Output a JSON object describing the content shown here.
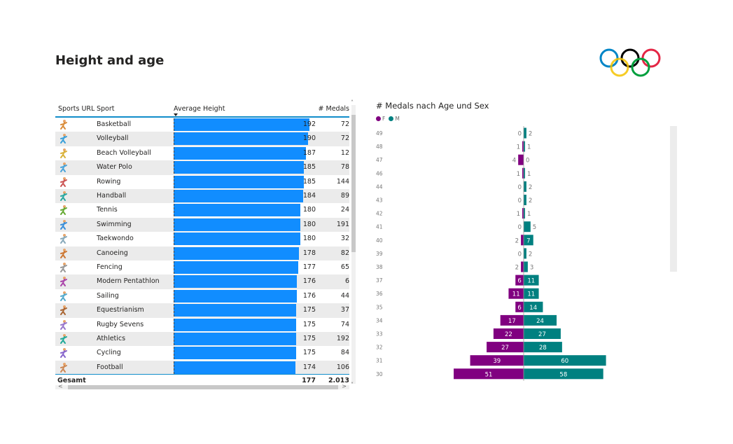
{
  "page": {
    "title": "Height and age",
    "logo": "olympic-rings-icon"
  },
  "table": {
    "headers": {
      "sports_url": "Sports URL",
      "sport": "Sport",
      "average_height": "Average Height",
      "medals": "# Medals"
    },
    "rows": [
      {
        "icon": "basketball-icon",
        "sport": "Basketball",
        "avg_height": 192,
        "medals": "72"
      },
      {
        "icon": "volleyball-icon",
        "sport": "Volleyball",
        "avg_height": 190,
        "medals": "72"
      },
      {
        "icon": "beach-volleyball-icon",
        "sport": "Beach Volleyball",
        "avg_height": 187,
        "medals": "12"
      },
      {
        "icon": "water-polo-icon",
        "sport": "Water Polo",
        "avg_height": 185,
        "medals": "78"
      },
      {
        "icon": "rowing-icon",
        "sport": "Rowing",
        "avg_height": 185,
        "medals": "144"
      },
      {
        "icon": "handball-icon",
        "sport": "Handball",
        "avg_height": 184,
        "medals": "89"
      },
      {
        "icon": "tennis-icon",
        "sport": "Tennis",
        "avg_height": 180,
        "medals": "24"
      },
      {
        "icon": "swimming-icon",
        "sport": "Swimming",
        "avg_height": 180,
        "medals": "191"
      },
      {
        "icon": "taekwondo-icon",
        "sport": "Taekwondo",
        "avg_height": 180,
        "medals": "32"
      },
      {
        "icon": "canoeing-icon",
        "sport": "Canoeing",
        "avg_height": 178,
        "medals": "82"
      },
      {
        "icon": "fencing-icon",
        "sport": "Fencing",
        "avg_height": 177,
        "medals": "65"
      },
      {
        "icon": "modern-pentathlon-icon",
        "sport": "Modern Pentathlon",
        "avg_height": 176,
        "medals": "6"
      },
      {
        "icon": "sailing-icon",
        "sport": "Sailing",
        "avg_height": 176,
        "medals": "44"
      },
      {
        "icon": "equestrianism-icon",
        "sport": "Equestrianism",
        "avg_height": 175,
        "medals": "37"
      },
      {
        "icon": "rugby-sevens-icon",
        "sport": "Rugby Sevens",
        "avg_height": 175,
        "medals": "74"
      },
      {
        "icon": "athletics-icon",
        "sport": "Athletics",
        "avg_height": 175,
        "medals": "192"
      },
      {
        "icon": "cycling-icon",
        "sport": "Cycling",
        "avg_height": 175,
        "medals": "84"
      },
      {
        "icon": "football-icon",
        "sport": "Football",
        "avg_height": 174,
        "medals": "106"
      }
    ],
    "total": {
      "label": "Gesamt",
      "avg_height": "177",
      "medals": "2.013"
    },
    "bar_color": "#118dff"
  },
  "chart_data": {
    "type": "bar",
    "orientation": "horizontal-diverging",
    "title": "# Medals nach Age und Sex",
    "categories": [
      "49",
      "48",
      "47",
      "46",
      "44",
      "43",
      "42",
      "41",
      "40",
      "39",
      "38",
      "37",
      "36",
      "35",
      "34",
      "33",
      "32",
      "31",
      "30"
    ],
    "series": [
      {
        "name": "F",
        "color": "#800080",
        "values": [
          0,
          1,
          4,
          1,
          0,
          0,
          1,
          0,
          2,
          0,
          2,
          6,
          11,
          6,
          17,
          22,
          27,
          39,
          51
        ]
      },
      {
        "name": "M",
        "color": "#008080",
        "values": [
          2,
          1,
          0,
          1,
          2,
          2,
          1,
          5,
          7,
          2,
          3,
          11,
          11,
          14,
          24,
          27,
          28,
          60,
          58
        ]
      }
    ],
    "legend": {
      "position": "top-left",
      "entries": [
        "F",
        "M"
      ]
    },
    "xlabel": "",
    "ylabel": "",
    "grid": false
  }
}
